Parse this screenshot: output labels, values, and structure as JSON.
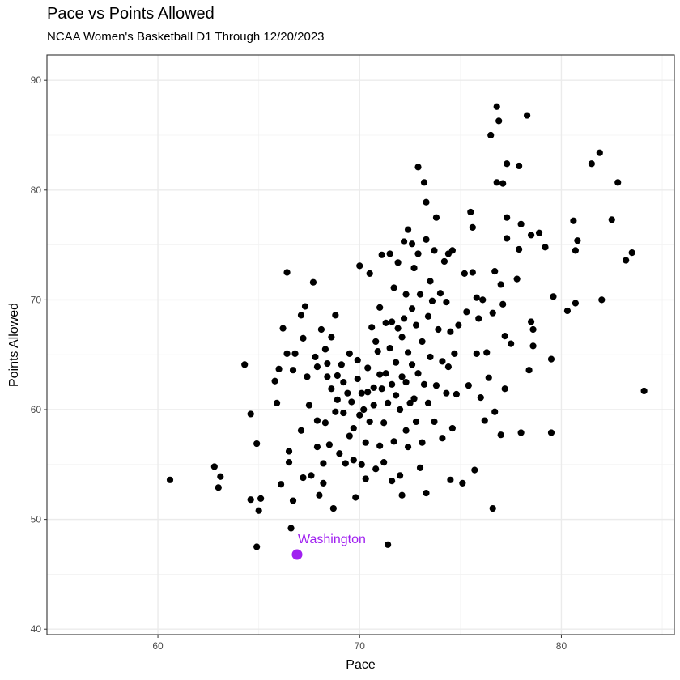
{
  "chart_data": {
    "type": "scatter",
    "title": "Pace vs Points Allowed",
    "subtitle": "NCAA Women's Basketball D1 Through 12/20/2023",
    "xlabel": "Pace",
    "ylabel": "Points Allowed",
    "xlim": [
      54.5,
      85.6
    ],
    "ylim": [
      39.5,
      92.3
    ],
    "x_ticks": [
      60,
      70,
      80
    ],
    "y_ticks": [
      40,
      50,
      60,
      70,
      80,
      90
    ],
    "grid": true,
    "point_color": "#000000",
    "highlight_color": "#a020f0",
    "highlight": {
      "label": "Washington",
      "x": 66.9,
      "y": 46.8
    },
    "points": [
      [
        60.6,
        53.6
      ],
      [
        62.8,
        54.8
      ],
      [
        63.0,
        52.9
      ],
      [
        63.1,
        53.9
      ],
      [
        64.3,
        64.1
      ],
      [
        64.6,
        59.6
      ],
      [
        64.6,
        51.8
      ],
      [
        64.9,
        56.9
      ],
      [
        64.9,
        47.5
      ],
      [
        65.0,
        50.8
      ],
      [
        65.1,
        51.9
      ],
      [
        65.8,
        62.6
      ],
      [
        65.9,
        60.6
      ],
      [
        66.0,
        63.7
      ],
      [
        66.1,
        53.2
      ],
      [
        66.2,
        67.4
      ],
      [
        66.4,
        72.5
      ],
      [
        66.4,
        65.1
      ],
      [
        66.5,
        56.2
      ],
      [
        66.5,
        55.2
      ],
      [
        66.6,
        49.2
      ],
      [
        66.7,
        51.7
      ],
      [
        66.7,
        63.6
      ],
      [
        66.8,
        65.1
      ],
      [
        67.1,
        58.1
      ],
      [
        67.1,
        68.6
      ],
      [
        67.2,
        66.5
      ],
      [
        67.2,
        53.8
      ],
      [
        67.3,
        69.4
      ],
      [
        67.4,
        63.0
      ],
      [
        67.5,
        60.4
      ],
      [
        67.6,
        54.0
      ],
      [
        67.7,
        71.6
      ],
      [
        67.8,
        64.8
      ],
      [
        67.9,
        63.9
      ],
      [
        67.9,
        59.0
      ],
      [
        67.9,
        56.6
      ],
      [
        68.0,
        52.2
      ],
      [
        68.1,
        67.3
      ],
      [
        68.2,
        55.1
      ],
      [
        68.2,
        53.3
      ],
      [
        68.3,
        65.5
      ],
      [
        68.3,
        58.8
      ],
      [
        68.4,
        64.2
      ],
      [
        68.4,
        63.0
      ],
      [
        68.5,
        56.8
      ],
      [
        68.6,
        66.6
      ],
      [
        68.6,
        61.9
      ],
      [
        68.7,
        51.0
      ],
      [
        68.8,
        59.8
      ],
      [
        68.8,
        68.6
      ],
      [
        68.9,
        60.9
      ],
      [
        68.9,
        63.1
      ],
      [
        69.0,
        56.0
      ],
      [
        69.1,
        64.1
      ],
      [
        69.2,
        62.5
      ],
      [
        69.2,
        59.7
      ],
      [
        69.3,
        55.1
      ],
      [
        69.4,
        61.5
      ],
      [
        69.5,
        65.1
      ],
      [
        69.5,
        57.6
      ],
      [
        69.6,
        60.7
      ],
      [
        69.7,
        58.3
      ],
      [
        69.7,
        55.4
      ],
      [
        69.8,
        52.0
      ],
      [
        69.9,
        64.5
      ],
      [
        69.9,
        62.8
      ],
      [
        70.0,
        73.1
      ],
      [
        70.0,
        59.5
      ],
      [
        70.1,
        61.5
      ],
      [
        70.1,
        55.0
      ],
      [
        70.2,
        60.0
      ],
      [
        70.3,
        57.0
      ],
      [
        70.3,
        53.7
      ],
      [
        70.4,
        63.8
      ],
      [
        70.4,
        61.6
      ],
      [
        70.5,
        58.9
      ],
      [
        70.5,
        72.4
      ],
      [
        70.6,
        67.5
      ],
      [
        70.7,
        62.0
      ],
      [
        70.7,
        60.4
      ],
      [
        70.8,
        66.2
      ],
      [
        70.8,
        54.6
      ],
      [
        70.9,
        65.3
      ],
      [
        71.0,
        63.2
      ],
      [
        71.0,
        69.3
      ],
      [
        71.0,
        56.7
      ],
      [
        71.1,
        74.1
      ],
      [
        71.1,
        61.9
      ],
      [
        71.2,
        58.8
      ],
      [
        71.2,
        55.2
      ],
      [
        71.3,
        67.9
      ],
      [
        71.3,
        63.3
      ],
      [
        71.4,
        60.6
      ],
      [
        71.4,
        47.7
      ],
      [
        71.5,
        74.2
      ],
      [
        71.5,
        65.6
      ],
      [
        71.6,
        53.5
      ],
      [
        71.6,
        62.3
      ],
      [
        71.6,
        68.0
      ],
      [
        71.7,
        71.1
      ],
      [
        71.7,
        57.1
      ],
      [
        71.8,
        64.3
      ],
      [
        71.8,
        61.3
      ],
      [
        71.9,
        73.4
      ],
      [
        71.9,
        67.4
      ],
      [
        72.0,
        60.0
      ],
      [
        72.0,
        54.0
      ],
      [
        72.1,
        66.6
      ],
      [
        72.1,
        63.0
      ],
      [
        72.1,
        52.2
      ],
      [
        72.2,
        75.3
      ],
      [
        72.2,
        68.3
      ],
      [
        72.3,
        58.1
      ],
      [
        72.3,
        62.5
      ],
      [
        72.3,
        70.5
      ],
      [
        72.4,
        76.4
      ],
      [
        72.4,
        65.2
      ],
      [
        72.4,
        56.6
      ],
      [
        72.5,
        60.6
      ],
      [
        72.6,
        75.1
      ],
      [
        72.6,
        69.2
      ],
      [
        72.6,
        64.1
      ],
      [
        72.7,
        72.9
      ],
      [
        72.7,
        61.0
      ],
      [
        72.8,
        67.7
      ],
      [
        72.8,
        58.9
      ],
      [
        72.9,
        82.1
      ],
      [
        72.9,
        74.2
      ],
      [
        72.9,
        63.3
      ],
      [
        73.0,
        70.5
      ],
      [
        73.0,
        54.7
      ],
      [
        73.1,
        57.0
      ],
      [
        73.1,
        66.2
      ],
      [
        73.2,
        62.3
      ],
      [
        73.2,
        80.7
      ],
      [
        73.3,
        78.9
      ],
      [
        73.3,
        75.5
      ],
      [
        73.3,
        52.4
      ],
      [
        73.4,
        60.6
      ],
      [
        73.4,
        68.5
      ],
      [
        73.5,
        64.8
      ],
      [
        73.5,
        71.7
      ],
      [
        73.6,
        69.9
      ],
      [
        73.7,
        74.5
      ],
      [
        73.7,
        58.9
      ],
      [
        73.8,
        77.5
      ],
      [
        73.8,
        62.2
      ],
      [
        73.9,
        67.3
      ],
      [
        74.0,
        70.6
      ],
      [
        74.1,
        64.4
      ],
      [
        74.1,
        57.4
      ],
      [
        74.2,
        73.5
      ],
      [
        74.3,
        69.8
      ],
      [
        74.3,
        61.5
      ],
      [
        74.4,
        74.2
      ],
      [
        74.4,
        63.9
      ],
      [
        74.5,
        53.6
      ],
      [
        74.5,
        67.1
      ],
      [
        74.6,
        74.5
      ],
      [
        74.6,
        58.3
      ],
      [
        74.7,
        65.1
      ],
      [
        74.8,
        61.4
      ],
      [
        74.9,
        67.7
      ],
      [
        75.1,
        53.3
      ],
      [
        75.2,
        72.4
      ],
      [
        75.3,
        68.9
      ],
      [
        75.4,
        62.2
      ],
      [
        75.5,
        78.0
      ],
      [
        75.6,
        76.6
      ],
      [
        75.6,
        72.5
      ],
      [
        75.7,
        54.5
      ],
      [
        75.8,
        70.2
      ],
      [
        75.8,
        65.1
      ],
      [
        75.9,
        68.3
      ],
      [
        76.0,
        61.1
      ],
      [
        76.1,
        70.0
      ],
      [
        76.2,
        59.0
      ],
      [
        76.3,
        65.2
      ],
      [
        76.4,
        62.9
      ],
      [
        76.5,
        85.0
      ],
      [
        76.6,
        51.0
      ],
      [
        76.6,
        68.8
      ],
      [
        76.7,
        72.6
      ],
      [
        76.7,
        59.8
      ],
      [
        76.8,
        87.6
      ],
      [
        76.8,
        80.7
      ],
      [
        76.9,
        86.3
      ],
      [
        77.0,
        57.7
      ],
      [
        77.0,
        71.4
      ],
      [
        77.1,
        80.6
      ],
      [
        77.1,
        69.6
      ],
      [
        77.2,
        66.7
      ],
      [
        77.2,
        61.9
      ],
      [
        77.3,
        82.4
      ],
      [
        77.3,
        77.5
      ],
      [
        77.3,
        75.6
      ],
      [
        77.5,
        66.0
      ],
      [
        77.8,
        71.9
      ],
      [
        77.9,
        82.2
      ],
      [
        77.9,
        74.6
      ],
      [
        78.0,
        76.9
      ],
      [
        78.0,
        57.9
      ],
      [
        78.3,
        86.8
      ],
      [
        78.4,
        63.6
      ],
      [
        78.5,
        75.9
      ],
      [
        78.5,
        68.0
      ],
      [
        78.6,
        67.3
      ],
      [
        78.6,
        65.8
      ],
      [
        78.9,
        76.1
      ],
      [
        79.2,
        74.8
      ],
      [
        79.5,
        64.6
      ],
      [
        79.5,
        57.9
      ],
      [
        79.6,
        70.3
      ],
      [
        80.3,
        69.0
      ],
      [
        80.6,
        77.2
      ],
      [
        80.7,
        74.5
      ],
      [
        80.7,
        69.7
      ],
      [
        80.8,
        75.4
      ],
      [
        81.5,
        82.4
      ],
      [
        81.9,
        83.4
      ],
      [
        82.0,
        70.0
      ],
      [
        82.5,
        77.3
      ],
      [
        82.8,
        80.7
      ],
      [
        83.2,
        73.6
      ],
      [
        83.5,
        74.3
      ],
      [
        84.1,
        61.7
      ]
    ]
  }
}
